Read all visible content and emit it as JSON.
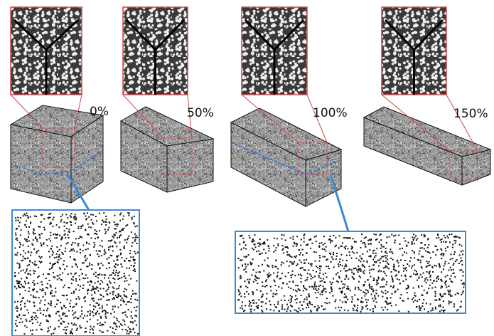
{
  "labels": [
    "0%",
    "50%",
    "100%",
    "150%"
  ]
}
